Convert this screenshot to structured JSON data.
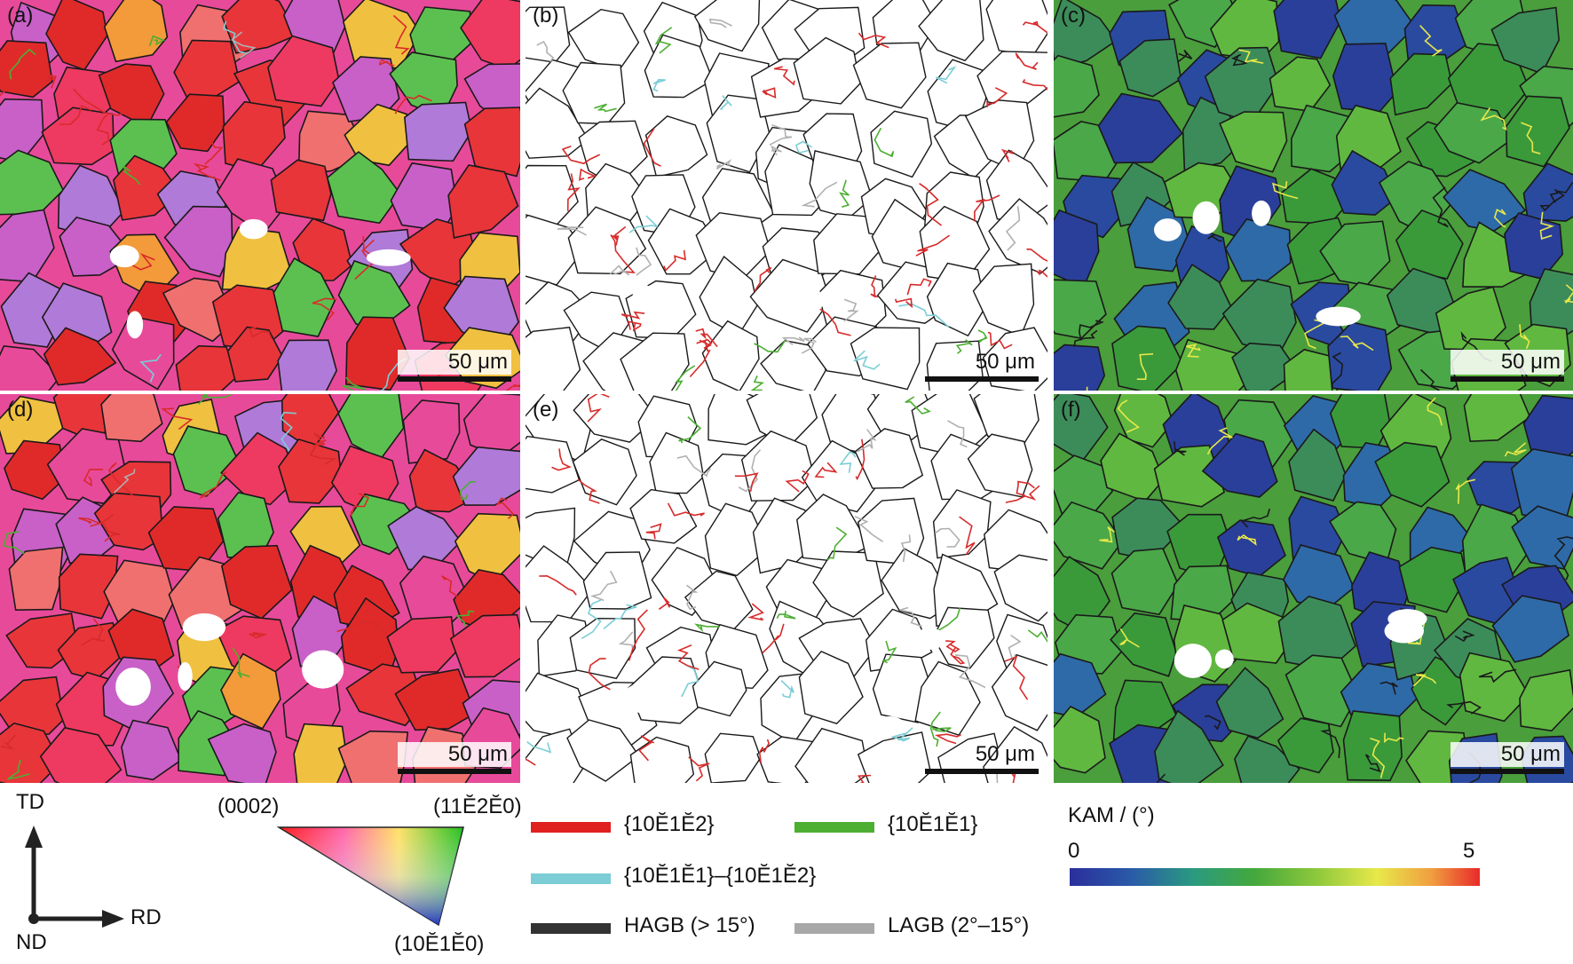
{
  "panels": [
    {
      "label": "(a)",
      "scale": "50 μm",
      "kind": "ipf"
    },
    {
      "label": "(b)",
      "scale": "50 μm",
      "kind": "boundary"
    },
    {
      "label": "(c)",
      "scale": "50 μm",
      "kind": "kam"
    },
    {
      "label": "(d)",
      "scale": "50 μm",
      "kind": "ipf"
    },
    {
      "label": "(e)",
      "scale": "50 μm",
      "kind": "boundary"
    },
    {
      "label": "(f)",
      "scale": "50 μm",
      "kind": "kam"
    }
  ],
  "axes": {
    "td": "TD",
    "rd": "RD",
    "nd": "ND"
  },
  "ipf_key": {
    "top_left": "(0002)",
    "top_right": "(11Ĕ2Ĕ0)",
    "bottom": "(10Ĕ1Ĕ0)"
  },
  "boundary_legend": [
    {
      "label": "{10Ĕ1Ĕ2}",
      "color": "#e0201e"
    },
    {
      "label": "{10Ĕ1Ĕ1}",
      "color": "#4caf32"
    },
    {
      "label": "{10Ĕ1Ĕ1}–{10Ĕ1Ĕ2}",
      "color": "#7ccdd6"
    },
    {
      "label": "HAGB (> 15°)",
      "color": "#333333"
    },
    {
      "label": "LAGB (2°–15°)",
      "color": "#a8a8a8"
    }
  ],
  "kam": {
    "title": "KAM / (°)",
    "min": "0",
    "max": "5"
  },
  "colors": {
    "ipf_red": "#e8353a",
    "ipf_pink": "#e84a9a",
    "ipf_orange": "#f39a3a",
    "kam_green": "#4a9e3c",
    "kam_blue": "#2a3f9a"
  }
}
